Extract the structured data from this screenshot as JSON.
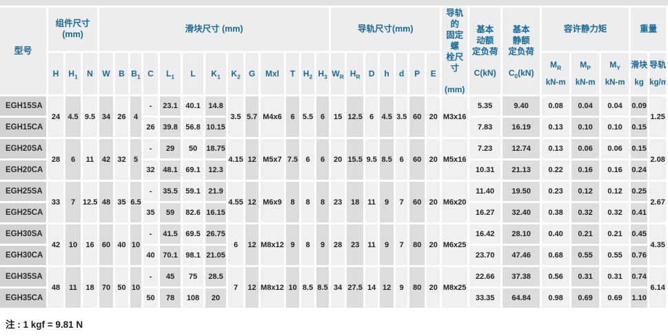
{
  "note": "注 : 1 kgf = 9.81 N",
  "colors": {
    "header_text": "#17699b",
    "header_bg": "#ededed",
    "band_light": "#f0f0f0",
    "band_dark": "#dcdcdc",
    "model_bg": "#d2d2d2",
    "value_text": "#222222",
    "top_strip": "#e2e2e2",
    "grid_line": "#ffffff"
  },
  "table": {
    "groups": [
      {
        "id": "model",
        "lines": [
          "型号"
        ],
        "rowspan2": true
      },
      {
        "id": "assembly-dimensions",
        "lines": [
          "组件尺寸",
          "(mm)"
        ],
        "span": 3
      },
      {
        "id": "block-dimensions",
        "lines": [
          "滑块尺寸 (mm)"
        ],
        "span": 13
      },
      {
        "id": "rail-dimensions",
        "lines": [
          "导轨尺寸(mm)"
        ],
        "span": 7
      },
      {
        "id": "rail-fixing-bolt",
        "lines": [
          "导轨的",
          "固定螺",
          "栓尺寸"
        ],
        "bottom": "(mm)",
        "rowspan2": true
      },
      {
        "id": "basic-dynamic-load",
        "lines": [
          "基本",
          "动额",
          "定负荷"
        ],
        "bottom": "C(kN)",
        "rowspan2": true
      },
      {
        "id": "basic-static-load",
        "lines": [
          "基本",
          "静额",
          "定负荷"
        ],
        "bottom": {
          "t": "C",
          "s": "0",
          "t2": "(kN)"
        },
        "rowspan2": true
      },
      {
        "id": "allowable-static-moment",
        "lines": [
          "容许静力矩"
        ],
        "span": 3
      },
      {
        "id": "weight",
        "lines": [
          "重量"
        ],
        "span": 2
      }
    ],
    "columns": [
      {
        "id": "H",
        "t": "H",
        "band": "light"
      },
      {
        "id": "H1",
        "t": "H",
        "s": "1",
        "band": "dark"
      },
      {
        "id": "N",
        "t": "N",
        "band": "light"
      },
      {
        "id": "W",
        "t": "W",
        "band": "dark"
      },
      {
        "id": "B",
        "t": "B",
        "band": "light"
      },
      {
        "id": "B1",
        "t": "B",
        "s": "1",
        "band": "dark"
      },
      {
        "id": "C",
        "t": "C",
        "band": "light"
      },
      {
        "id": "L1",
        "t": "L",
        "s": "1",
        "band": "dark"
      },
      {
        "id": "L",
        "t": "L",
        "band": "light"
      },
      {
        "id": "K1",
        "t": "K",
        "s": "1",
        "band": "dark"
      },
      {
        "id": "K2",
        "t": "K",
        "s": "2",
        "band": "light"
      },
      {
        "id": "G",
        "t": "G",
        "band": "dark"
      },
      {
        "id": "Mxl",
        "t": "Mxl",
        "band": "light"
      },
      {
        "id": "T",
        "t": "T",
        "band": "dark"
      },
      {
        "id": "H2",
        "t": "H",
        "s": "2",
        "band": "light"
      },
      {
        "id": "H3",
        "t": "H",
        "s": "3",
        "band": "dark"
      },
      {
        "id": "WR",
        "t": "W",
        "s": "R",
        "band": "light"
      },
      {
        "id": "HR",
        "t": "H",
        "s": "R",
        "band": "dark"
      },
      {
        "id": "D",
        "t": "D",
        "band": "light"
      },
      {
        "id": "h",
        "t": "h",
        "band": "dark"
      },
      {
        "id": "d",
        "t": "d",
        "band": "light"
      },
      {
        "id": "P",
        "t": "P",
        "band": "dark"
      },
      {
        "id": "E",
        "t": "E",
        "band": "light"
      },
      {
        "id": "bolt",
        "norow2": true,
        "band": "light"
      },
      {
        "id": "C_kN",
        "norow2": true,
        "band": "light"
      },
      {
        "id": "C0_kN",
        "norow2": true,
        "band": "dark"
      },
      {
        "id": "MR",
        "t": "M",
        "s": "R",
        "unit": "kN-m",
        "band": "light"
      },
      {
        "id": "MP",
        "t": "M",
        "s": "P",
        "unit": "kN-m",
        "band": "dark"
      },
      {
        "id": "MY",
        "t": "M",
        "s": "Y",
        "unit": "kN-m",
        "band": "light"
      },
      {
        "id": "block_kg",
        "t": "滑块",
        "unit": "kg",
        "band": "dark"
      },
      {
        "id": "rail_kg",
        "t": "导轨",
        "unit": "kg/m",
        "band": "light"
      }
    ],
    "pairs": [
      {
        "models": [
          "EGH15SA",
          "EGH15CA"
        ],
        "values": {
          "H": "24",
          "H1": "4.5",
          "N": "9.5",
          "W": "34",
          "B": "26",
          "B1": "4",
          "C": [
            "-",
            "26"
          ],
          "L1": [
            "23.1",
            "39.8"
          ],
          "L": [
            "40.1",
            "56.8"
          ],
          "K1": [
            "14.8",
            "10.15"
          ],
          "K2": "3.5",
          "G": "5.7",
          "Mxl": "M4x6",
          "T": "6",
          "H2": "5.5",
          "H3": "6",
          "WR": "15",
          "HR": "12.5",
          "D": "6",
          "h": "4.5",
          "d": "3.5",
          "P": "60",
          "E": "20",
          "bolt": "M3x16",
          "C_kN": [
            "5.35",
            "7.83"
          ],
          "C0_kN": [
            "9.40",
            "16.19"
          ],
          "MR": [
            "0.08",
            "0.13"
          ],
          "MP": [
            "0.04",
            "0.10"
          ],
          "MY": [
            "0.04",
            "0.10"
          ],
          "block_kg": [
            "0.09",
            "0.15"
          ],
          "rail_kg": "1.25"
        }
      },
      {
        "models": [
          "EGH20SA",
          "EGH20CA"
        ],
        "values": {
          "H": "28",
          "H1": "6",
          "N": "11",
          "W": "42",
          "B": "32",
          "B1": "5",
          "C": [
            "-",
            "32"
          ],
          "L1": [
            "29",
            "48.1"
          ],
          "L": [
            "50",
            "69.1"
          ],
          "K1": [
            "18.75",
            "12.3"
          ],
          "K2": "4.15",
          "G": "12",
          "Mxl": "M5x7",
          "T": "7.5",
          "H2": "6",
          "H3": "6",
          "WR": "20",
          "HR": "15.5",
          "D": "9.5",
          "h": "8.5",
          "d": "6",
          "P": "60",
          "E": "20",
          "bolt": "M5x16",
          "C_kN": [
            "7.23",
            "10.31"
          ],
          "C0_kN": [
            "12.74",
            "21.13"
          ],
          "MR": [
            "0.13",
            "0.22"
          ],
          "MP": [
            "0.06",
            "0.16"
          ],
          "MY": [
            "0.06",
            "0.16"
          ],
          "block_kg": [
            "0.15",
            "0.24"
          ],
          "rail_kg": "2.08"
        }
      },
      {
        "models": [
          "EGH25SA",
          "EGH25CA"
        ],
        "values": {
          "H": "33",
          "H1": "7",
          "N": "12.5",
          "W": "48",
          "B": "35",
          "B1": "6.5",
          "C": [
            "-",
            "35"
          ],
          "L1": [
            "35.5",
            "59"
          ],
          "L": [
            "59.1",
            "82.6"
          ],
          "K1": [
            "21.9",
            "16.15"
          ],
          "K2": "4.55",
          "G": "12",
          "Mxl": "M6x9",
          "T": "8",
          "H2": "8",
          "H3": "8",
          "WR": "23",
          "HR": "18",
          "D": "11",
          "h": "9",
          "d": "7",
          "P": "60",
          "E": "20",
          "bolt": "M6x20",
          "C_kN": [
            "11.40",
            "16.27"
          ],
          "C0_kN": [
            "19.50",
            "32.40"
          ],
          "MR": [
            "0.23",
            "0.38"
          ],
          "MP": [
            "0.12",
            "0.32"
          ],
          "MY": [
            "0.12",
            "0.32"
          ],
          "block_kg": [
            "0.25",
            "0.41"
          ],
          "rail_kg": "2.67"
        }
      },
      {
        "models": [
          "EGH30SA",
          "EGH30CA"
        ],
        "values": {
          "H": "42",
          "H1": "10",
          "N": "16",
          "W": "60",
          "B": "40",
          "B1": "10",
          "C": [
            "-",
            "40"
          ],
          "L1": [
            "41.5",
            "70.1"
          ],
          "L": [
            "69.5",
            "98.1"
          ],
          "K1": [
            "26.75",
            "21.05"
          ],
          "K2": "6",
          "G": "12",
          "Mxl": "M8x12",
          "T": "9",
          "H2": "8",
          "H3": "9",
          "WR": "28",
          "HR": "23",
          "D": "11",
          "h": "9",
          "d": "7",
          "P": "80",
          "E": "20",
          "bolt": "M6x25",
          "C_kN": [
            "16.42",
            "23.70"
          ],
          "C0_kN": [
            "28.10",
            "47.46"
          ],
          "MR": [
            "0.40",
            "0.68"
          ],
          "MP": [
            "0.21",
            "0.55"
          ],
          "MY": [
            "0.21",
            "0.55"
          ],
          "block_kg": [
            "0.45",
            "0.76"
          ],
          "rail_kg": "4.35"
        }
      },
      {
        "models": [
          "EGH35SA",
          "EGH35CA"
        ],
        "values": {
          "H": "48",
          "H1": "11",
          "N": "18",
          "W": "70",
          "B": "50",
          "B1": "10",
          "C": [
            "-",
            "50"
          ],
          "L1": [
            "45",
            "78"
          ],
          "L": [
            "75",
            "108"
          ],
          "K1": [
            "28.5",
            "20"
          ],
          "K2": "7",
          "G": "12",
          "Mxl": "M8x12",
          "T": "10",
          "H2": "8.5",
          "H3": "8.5",
          "WR": "34",
          "HR": "27.5",
          "D": "14",
          "h": "12",
          "d": "9",
          "P": "80",
          "E": "20",
          "bolt": "M8x25",
          "C_kN": [
            "22.66",
            "33.35"
          ],
          "C0_kN": [
            "37.38",
            "64.84"
          ],
          "MR": [
            "0.56",
            "0.98"
          ],
          "MP": [
            "0.31",
            "0.69"
          ],
          "MY": [
            "0.31",
            "0.69"
          ],
          "block_kg": [
            "0.74",
            "1.10"
          ],
          "rail_kg": "6.14"
        }
      }
    ]
  }
}
